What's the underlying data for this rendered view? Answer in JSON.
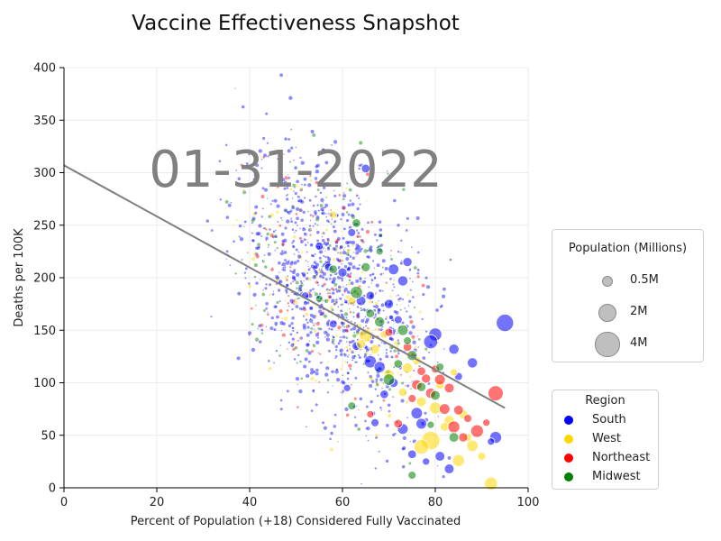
{
  "chart_data": {
    "type": "scatter",
    "title": "Vaccine Effectiveness Snapshot",
    "date_stamp": "01-31-2022",
    "xlabel": "Percent of Population (+18) Considered Fully Vaccinated",
    "ylabel": "Deaths per 100K",
    "xlim": [
      0,
      100
    ],
    "ylim": [
      0,
      400
    ],
    "x_ticks": [
      "0",
      "20",
      "40",
      "60",
      "80",
      "100"
    ],
    "y_ticks": [
      "0",
      "50",
      "100",
      "150",
      "200",
      "250",
      "300",
      "350",
      "400"
    ],
    "grid": true,
    "trend_line": {
      "x": [
        0,
        95
      ],
      "y": [
        307,
        76
      ]
    },
    "size_legend": {
      "title": "Population (Millions)",
      "entries": [
        {
          "label": "0.5M",
          "population_millions": 0.5
        },
        {
          "label": "2M",
          "population_millions": 2
        },
        {
          "label": "4M",
          "population_millions": 4
        }
      ]
    },
    "region_legend": {
      "title": "Region",
      "entries": [
        {
          "label": "South",
          "color": "#0000ff"
        },
        {
          "label": "West",
          "color": "#ffd700"
        },
        {
          "label": "Northeast",
          "color": "#ff0000"
        },
        {
          "label": "Midwest",
          "color": "#008000"
        }
      ]
    },
    "series": [
      {
        "name": "South",
        "color": "#0000ff",
        "points": [
          [
            95,
            157,
            3.0
          ],
          [
            93,
            48,
            1.2
          ],
          [
            80,
            146,
            1.5
          ],
          [
            79,
            139,
            1.8
          ],
          [
            71,
            208,
            0.9
          ],
          [
            73,
            197,
            0.8
          ],
          [
            64,
            178,
            0.7
          ],
          [
            66,
            120,
            1.3
          ],
          [
            68,
            115,
            1.0
          ],
          [
            76,
            71,
            1.1
          ],
          [
            73,
            56,
            0.9
          ],
          [
            84,
            132,
            0.8
          ],
          [
            88,
            119,
            0.8
          ],
          [
            81,
            30,
            0.7
          ],
          [
            83,
            18,
            0.7
          ],
          [
            77,
            61,
            0.9
          ],
          [
            74,
            215,
            0.6
          ],
          [
            65,
            304,
            0.5
          ],
          [
            60,
            205,
            0.6
          ],
          [
            62,
            243,
            0.4
          ],
          [
            55,
            230,
            0.4
          ],
          [
            57,
            210,
            0.4
          ],
          [
            66,
            183,
            0.5
          ],
          [
            70,
            175,
            0.6
          ],
          [
            63,
            135,
            0.5
          ],
          [
            71,
            100,
            0.6
          ],
          [
            69,
            89,
            0.5
          ],
          [
            75,
            32,
            0.5
          ],
          [
            85,
            106,
            0.4
          ],
          [
            92,
            44,
            0.3
          ],
          [
            67,
            62,
            0.4
          ],
          [
            58,
            156,
            0.4
          ],
          [
            52,
            183,
            0.3
          ],
          [
            61,
            95,
            0.3
          ],
          [
            72,
            160,
            0.4
          ],
          [
            78,
            25,
            0.3
          ]
        ]
      },
      {
        "name": "West",
        "color": "#ffd700",
        "points": [
          [
            79,
            45,
            3.5
          ],
          [
            77,
            39,
            2.0
          ],
          [
            92,
            4,
            1.5
          ],
          [
            65,
            145,
            1.5
          ],
          [
            80,
            76,
            1.2
          ],
          [
            85,
            26,
            1.2
          ],
          [
            88,
            40,
            1.1
          ],
          [
            83,
            64,
            0.8
          ],
          [
            74,
            114,
            0.8
          ],
          [
            70,
            108,
            0.7
          ],
          [
            77,
            82,
            0.7
          ],
          [
            86,
            70,
            0.6
          ],
          [
            64,
            137,
            0.6
          ],
          [
            67,
            132,
            0.6
          ],
          [
            82,
            58,
            0.5
          ],
          [
            73,
            91,
            0.5
          ],
          [
            81,
            98,
            0.5
          ],
          [
            76,
            121,
            0.5
          ],
          [
            69,
            146,
            0.4
          ],
          [
            62,
            178,
            0.4
          ],
          [
            87,
            48,
            0.4
          ],
          [
            90,
            30,
            0.4
          ],
          [
            84,
            110,
            0.3
          ],
          [
            58,
            260,
            0.3
          ]
        ]
      },
      {
        "name": "Northeast",
        "color": "#ff0000",
        "points": [
          [
            93,
            90,
            2.2
          ],
          [
            89,
            54,
            1.4
          ],
          [
            84,
            58,
            1.2
          ],
          [
            81,
            103,
            0.9
          ],
          [
            82,
            75,
            0.9
          ],
          [
            79,
            90,
            0.8
          ],
          [
            76,
            98,
            0.8
          ],
          [
            83,
            95,
            0.7
          ],
          [
            85,
            74,
            0.7
          ],
          [
            78,
            104,
            0.6
          ],
          [
            86,
            48,
            0.6
          ],
          [
            77,
            111,
            0.5
          ],
          [
            74,
            134,
            0.5
          ],
          [
            72,
            61,
            0.5
          ],
          [
            80,
            113,
            0.4
          ],
          [
            75,
            85,
            0.4
          ],
          [
            70,
            148,
            0.4
          ],
          [
            87,
            66,
            0.4
          ],
          [
            66,
            70,
            0.3
          ],
          [
            91,
            62,
            0.3
          ]
        ]
      },
      {
        "name": "Midwest",
        "color": "#008000",
        "points": [
          [
            63,
            186,
            1.3
          ],
          [
            70,
            103,
            1.1
          ],
          [
            73,
            150,
            0.9
          ],
          [
            68,
            158,
            0.8
          ],
          [
            75,
            126,
            0.8
          ],
          [
            80,
            88,
            0.7
          ],
          [
            84,
            48,
            0.7
          ],
          [
            77,
            96,
            0.6
          ],
          [
            65,
            210,
            0.6
          ],
          [
            63,
            252,
            0.5
          ],
          [
            72,
            118,
            0.5
          ],
          [
            58,
            208,
            0.5
          ],
          [
            66,
            166,
            0.5
          ],
          [
            74,
            140,
            0.4
          ],
          [
            62,
            78,
            0.4
          ],
          [
            75,
            12,
            0.4
          ],
          [
            81,
            115,
            0.4
          ],
          [
            79,
            60,
            0.3
          ],
          [
            55,
            180,
            0.3
          ],
          [
            68,
            225,
            0.3
          ]
        ]
      }
    ]
  }
}
